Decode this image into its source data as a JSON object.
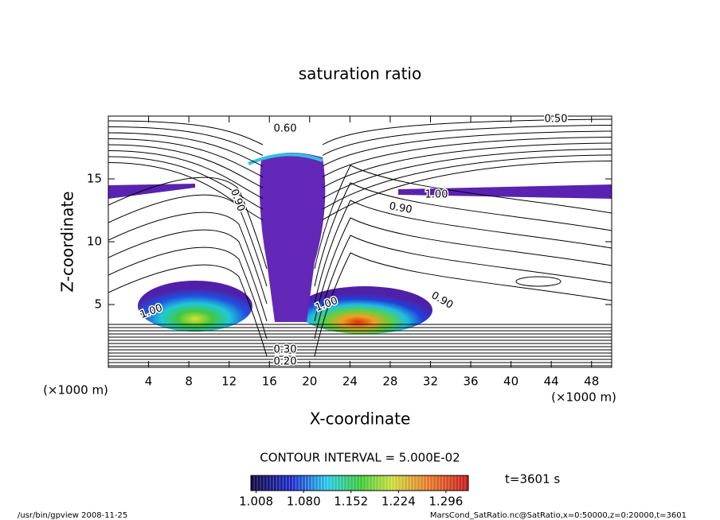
{
  "chart_data": {
    "type": "contour",
    "title": "saturation ratio",
    "x_label": "X-coordinate",
    "y_label": "Z-coordinate",
    "x_unit": "(×1000 m)",
    "xlim": [
      0,
      50
    ],
    "xticks": [
      4,
      8,
      12,
      16,
      20,
      24,
      28,
      32,
      36,
      40,
      44,
      48
    ],
    "ylim": [
      0,
      20
    ],
    "yticks": [
      5,
      10,
      15
    ],
    "contour_labels": [
      "0.60",
      "0.50",
      "1.00",
      "0.90",
      "0.90",
      "1.00",
      "1.00",
      "0.90",
      "0.30",
      "0.20"
    ],
    "contour_interval": "CONTOUR INTERVAL = 5.000E-02",
    "time_label": "t=3601 s",
    "colorbar_lim": [
      1.0,
      1.33
    ],
    "colorbar_ticks": [
      1.008,
      {
        "value": 1.08,
        "label": "1.080"
      },
      1.152,
      1.224,
      1.296
    ],
    "footer_left": "/usr/bin/gpview  2008-11-25",
    "footer_right": "MarsCond_SatRatio.nc@SatRatio,x=0:50000,z=0:20000,t=3601"
  }
}
